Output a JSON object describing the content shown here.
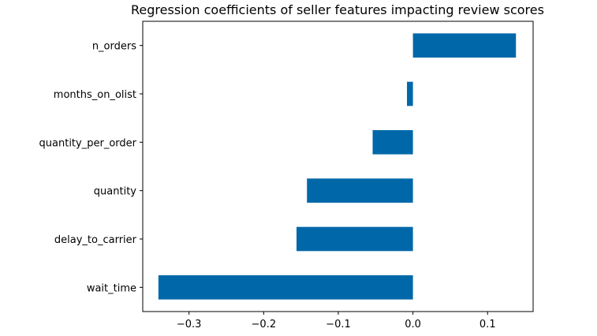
{
  "chart_data": {
    "type": "bar",
    "orientation": "horizontal",
    "title": "Regression coefficients of seller features impacting review scores",
    "xlabel": "",
    "ylabel": "",
    "categories": [
      "wait_time",
      "delay_to_carrier",
      "quantity",
      "quantity_per_order",
      "months_on_olist",
      "n_orders"
    ],
    "values": [
      -0.341,
      -0.156,
      -0.142,
      -0.054,
      -0.008,
      0.138
    ],
    "xlim": [
      -0.362,
      0.161
    ],
    "xticks": [
      -0.3,
      -0.2,
      -0.1,
      0.0,
      0.1
    ],
    "xtick_labels": [
      "−0.3",
      "−0.2",
      "−0.1",
      "0.0",
      "0.1"
    ],
    "grid": false,
    "bar_color": "#0068a9"
  }
}
